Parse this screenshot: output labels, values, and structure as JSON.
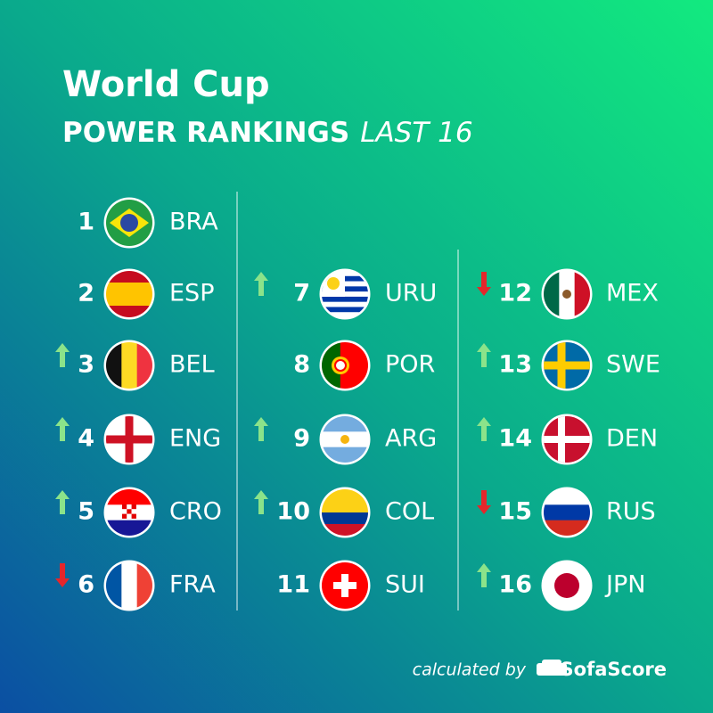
{
  "header": {
    "title": "World Cup",
    "subtitle": "POWER RANKINGS",
    "subtitle_tag": "LAST 16"
  },
  "rankings": [
    {
      "rank": 1,
      "code": "BRA"
    },
    {
      "rank": 2,
      "code": "ESP"
    },
    {
      "rank": 3,
      "code": "BEL",
      "trend": "up"
    },
    {
      "rank": 4,
      "code": "ENG",
      "trend": "up"
    },
    {
      "rank": 5,
      "code": "CRO",
      "trend": "up"
    },
    {
      "rank": 6,
      "code": "FRA",
      "trend": "down"
    },
    {
      "rank": 7,
      "code": "URU",
      "trend": "up"
    },
    {
      "rank": 8,
      "code": "POR"
    },
    {
      "rank": 9,
      "code": "ARG",
      "trend": "up"
    },
    {
      "rank": 10,
      "code": "COL",
      "trend": "up"
    },
    {
      "rank": 11,
      "code": "SUI"
    },
    {
      "rank": 12,
      "code": "MEX",
      "trend": "down"
    },
    {
      "rank": 13,
      "code": "SWE",
      "trend": "up"
    },
    {
      "rank": 14,
      "code": "DEN",
      "trend": "up"
    },
    {
      "rank": 15,
      "code": "RUS",
      "trend": "down"
    },
    {
      "rank": 16,
      "code": "JPN",
      "trend": "up"
    }
  ],
  "footer": {
    "note": "calculated by",
    "brand": "SofaScore"
  }
}
